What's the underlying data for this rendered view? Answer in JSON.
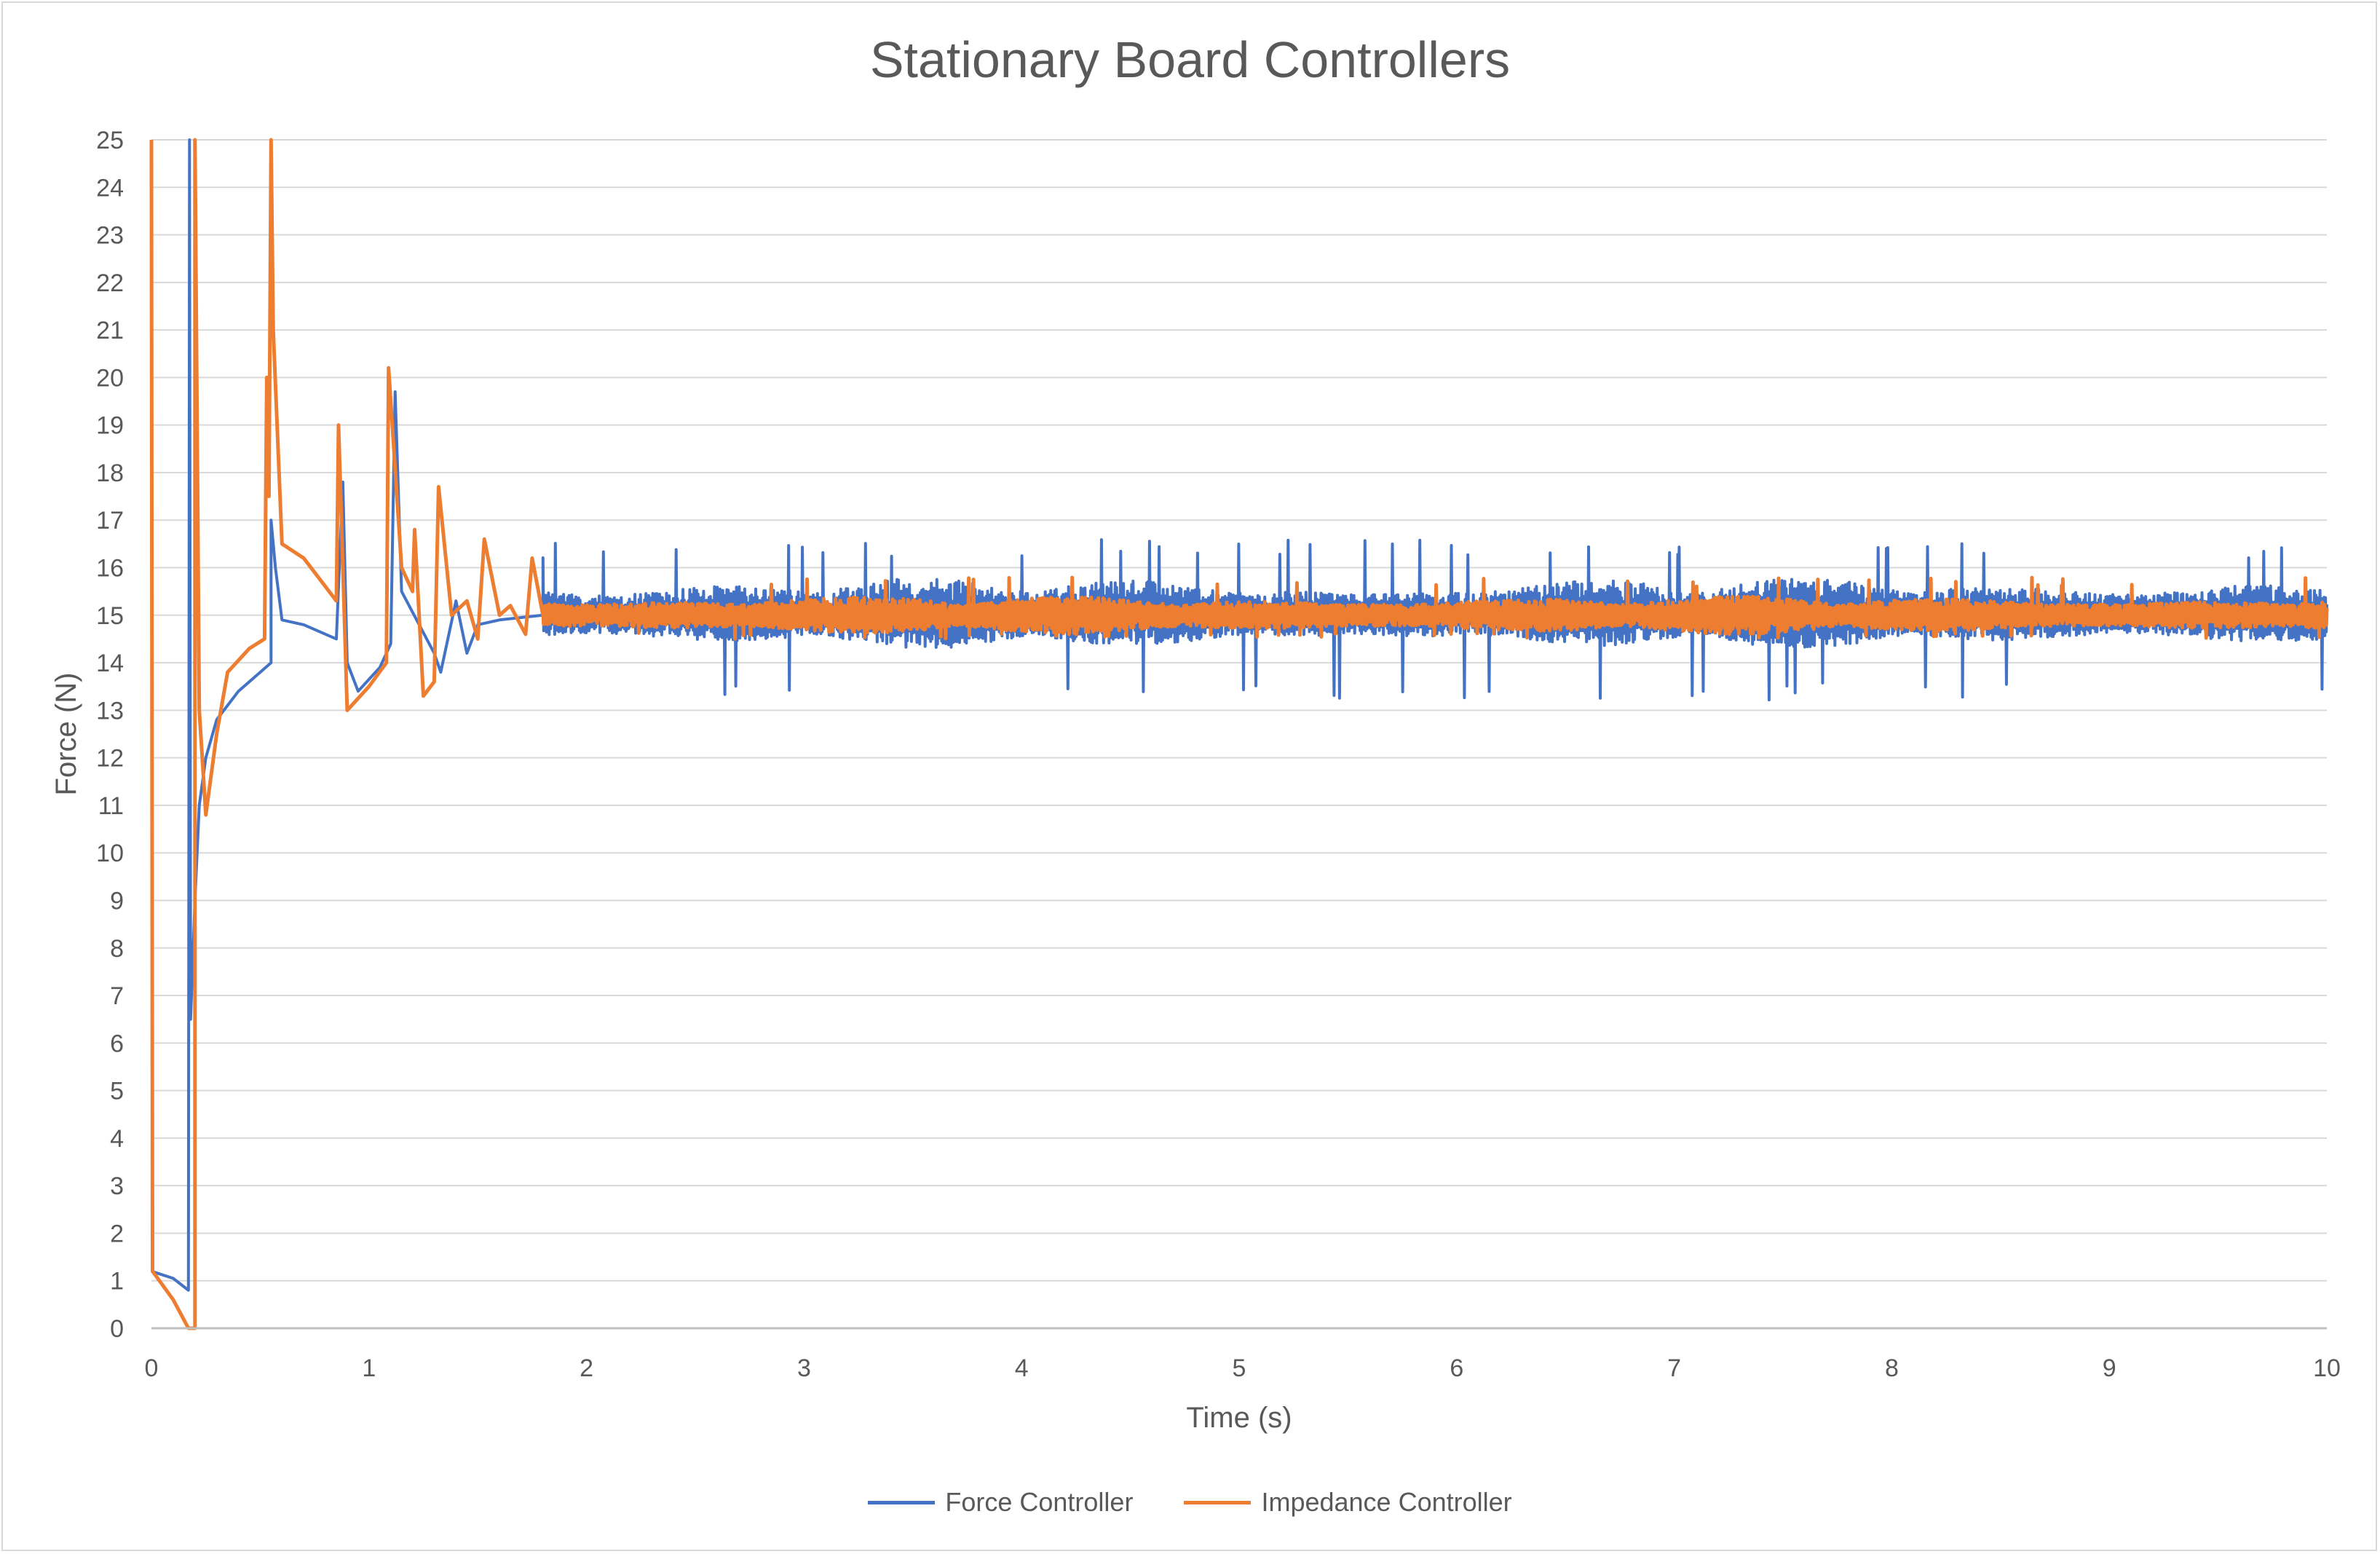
{
  "chart_data": {
    "type": "line",
    "title": "Stationary Board Controllers",
    "xlabel": "Time (s)",
    "ylabel": "Force (N)",
    "xlim": [
      0,
      10
    ],
    "ylim": [
      0,
      25
    ],
    "x_ticks": [
      0,
      1,
      2,
      3,
      4,
      5,
      6,
      7,
      8,
      9,
      10
    ],
    "y_ticks": [
      0,
      1,
      2,
      3,
      4,
      5,
      6,
      7,
      8,
      9,
      10,
      11,
      12,
      13,
      14,
      15,
      16,
      17,
      18,
      19,
      20,
      21,
      22,
      23,
      24,
      25
    ],
    "grid": "horizontal",
    "legend_position": "bottom",
    "series": [
      {
        "name": "Force Controller",
        "color": "#4472c4",
        "points": [
          [
            0,
            1.2
          ],
          [
            0.1,
            1.05
          ],
          [
            0.17,
            0.8
          ],
          [
            0.175,
            25
          ],
          [
            0.18,
            6.5
          ],
          [
            0.2,
            9
          ],
          [
            0.22,
            11
          ],
          [
            0.25,
            12
          ],
          [
            0.3,
            12.8
          ],
          [
            0.4,
            13.4
          ],
          [
            0.5,
            13.8
          ],
          [
            0.55,
            14.0
          ],
          [
            0.55,
            17.0
          ],
          [
            0.57,
            16.0
          ],
          [
            0.6,
            14.9
          ],
          [
            0.7,
            14.8
          ],
          [
            0.85,
            14.5
          ],
          [
            0.88,
            17.8
          ],
          [
            0.9,
            14.0
          ],
          [
            0.95,
            13.4
          ],
          [
            1.05,
            13.9
          ],
          [
            1.1,
            14.4
          ],
          [
            1.12,
            19.7
          ],
          [
            1.15,
            15.5
          ],
          [
            1.3,
            14.2
          ],
          [
            1.33,
            13.8
          ],
          [
            1.4,
            15.3
          ],
          [
            1.45,
            14.2
          ],
          [
            1.5,
            14.8
          ],
          [
            1.6,
            14.9
          ],
          [
            1.8,
            15.0
          ],
          [
            2,
            15.0
          ],
          [
            10,
            15.0
          ]
        ],
        "noise_band": {
          "from": 1.8,
          "to": 10,
          "center": 15.0,
          "typical_min": 14.3,
          "typical_max": 15.8,
          "peak_min": 13.2,
          "peak_max": 16.6
        }
      },
      {
        "name": "Impedance Controller",
        "color": "#ed7d31",
        "points": [
          [
            0,
            25
          ],
          [
            0.005,
            1.2
          ],
          [
            0.1,
            0.6
          ],
          [
            0.17,
            0.0
          ],
          [
            0.2,
            0.0
          ],
          [
            0.2,
            25
          ],
          [
            0.22,
            13.0
          ],
          [
            0.25,
            10.8
          ],
          [
            0.3,
            12.5
          ],
          [
            0.35,
            13.8
          ],
          [
            0.45,
            14.3
          ],
          [
            0.52,
            14.5
          ],
          [
            0.53,
            20.0
          ],
          [
            0.54,
            17.5
          ],
          [
            0.55,
            25
          ],
          [
            0.56,
            21.0
          ],
          [
            0.6,
            16.5
          ],
          [
            0.7,
            16.2
          ],
          [
            0.85,
            15.3
          ],
          [
            0.86,
            19.0
          ],
          [
            0.9,
            13.0
          ],
          [
            1.0,
            13.5
          ],
          [
            1.08,
            14.0
          ],
          [
            1.09,
            20.2
          ],
          [
            1.15,
            16.0
          ],
          [
            1.2,
            15.5
          ],
          [
            1.21,
            16.8
          ],
          [
            1.25,
            13.3
          ],
          [
            1.3,
            13.6
          ],
          [
            1.32,
            17.7
          ],
          [
            1.38,
            15.0
          ],
          [
            1.45,
            15.3
          ],
          [
            1.5,
            14.5
          ],
          [
            1.53,
            16.6
          ],
          [
            1.6,
            15.0
          ],
          [
            1.65,
            15.2
          ],
          [
            1.72,
            14.6
          ],
          [
            1.75,
            16.2
          ],
          [
            1.8,
            15.0
          ],
          [
            2,
            15.0
          ],
          [
            10,
            15.0
          ]
        ],
        "noise_band": {
          "from": 1.8,
          "to": 10,
          "center": 15.0,
          "typical_min": 14.6,
          "typical_max": 15.4,
          "peak_min": 14.5,
          "peak_max": 15.8
        }
      }
    ]
  }
}
